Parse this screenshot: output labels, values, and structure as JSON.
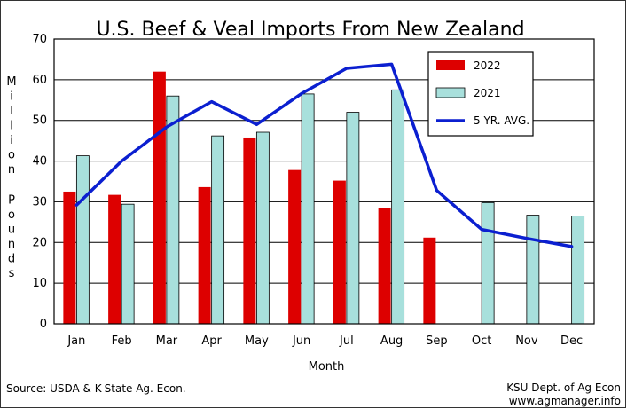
{
  "chart_data": {
    "type": "bar",
    "title": "U.S. Beef & Veal Imports From New Zealand",
    "xlabel": "Month",
    "ylabel": "Million Pounds",
    "ylim": [
      0,
      70
    ],
    "yticks": [
      0,
      10,
      20,
      30,
      40,
      50,
      60,
      70
    ],
    "grid": true,
    "legend_position": "top-right",
    "categories": [
      "Jan",
      "Feb",
      "Mar",
      "Apr",
      "May",
      "Jun",
      "Jul",
      "Aug",
      "Sep",
      "Oct",
      "Nov",
      "Dec"
    ],
    "series": [
      {
        "name": "2022",
        "type": "bar",
        "color": "#dd0000",
        "values": [
          32.5,
          31.7,
          62.0,
          33.6,
          45.8,
          37.8,
          35.2,
          28.4,
          21.2,
          null,
          null,
          null
        ]
      },
      {
        "name": "2021",
        "type": "bar",
        "color": "#a8e0dc",
        "values": [
          41.3,
          29.4,
          56.0,
          46.2,
          47.1,
          56.5,
          52.0,
          57.5,
          null,
          29.8,
          26.7,
          26.5
        ]
      },
      {
        "name": "5 YR. AVG.",
        "type": "line",
        "color": "#0b1fd0",
        "values": [
          29.2,
          40.0,
          48.4,
          54.6,
          49.0,
          56.6,
          62.8,
          63.8,
          32.8,
          23.2,
          21.0,
          19.0
        ]
      }
    ]
  },
  "footer": {
    "source": "Source:  USDA & K-State Ag. Econ.",
    "credit_line1": "KSU Dept. of Ag Econ",
    "credit_line2": "www.agmanager.info"
  }
}
